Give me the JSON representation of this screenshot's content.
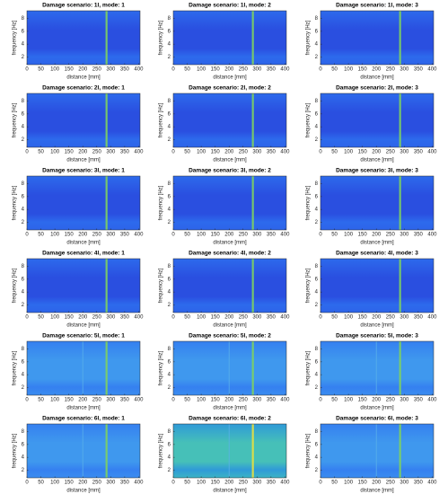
{
  "chart_data": [
    {
      "type": "heatmap",
      "title": "Damage scenario: 1l, mode: 1",
      "xlabel": "distance [mm]",
      "ylabel": "frequency [Hz]",
      "xlim": [
        0,
        405
      ],
      "ylim": [
        0.8,
        9.2
      ],
      "xticks": [
        0,
        50,
        100,
        150,
        200,
        250,
        300,
        350,
        400
      ],
      "yticks": [
        2,
        4,
        6,
        8
      ]
    },
    {
      "type": "heatmap",
      "title": "Damage scenario: 1l, mode: 2",
      "xlabel": "distance [mm]",
      "ylabel": "frequency [Hz]",
      "xlim": [
        0,
        405
      ],
      "ylim": [
        0.8,
        9.2
      ],
      "xticks": [
        0,
        50,
        100,
        150,
        200,
        250,
        300,
        350,
        400
      ],
      "yticks": [
        2,
        4,
        6,
        8
      ]
    },
    {
      "type": "heatmap",
      "title": "Damage scenario: 1l, mode: 3",
      "xlabel": "distance [mm]",
      "ylabel": "frequency [Hz]",
      "xlim": [
        0,
        405
      ],
      "ylim": [
        0.8,
        9.2
      ],
      "xticks": [
        0,
        50,
        100,
        150,
        200,
        250,
        300,
        350,
        400
      ],
      "yticks": [
        2,
        4,
        6,
        8
      ]
    },
    {
      "type": "heatmap",
      "title": "Damage scenario: 2l, mode: 1",
      "xlabel": "distance [mm]",
      "ylabel": "frequency [Hz]",
      "xlim": [
        0,
        405
      ],
      "ylim": [
        0.8,
        9.2
      ],
      "xticks": [
        0,
        50,
        100,
        150,
        200,
        250,
        300,
        350,
        400
      ],
      "yticks": [
        2,
        4,
        6,
        8
      ]
    },
    {
      "type": "heatmap",
      "title": "Damage scenario: 2l, mode: 2",
      "xlabel": "distance [mm]",
      "ylabel": "frequency [Hz]",
      "xlim": [
        0,
        405
      ],
      "ylim": [
        0.8,
        9.2
      ],
      "xticks": [
        0,
        50,
        100,
        150,
        200,
        250,
        300,
        350,
        400
      ],
      "yticks": [
        2,
        4,
        6,
        8
      ]
    },
    {
      "type": "heatmap",
      "title": "Damage scenario: 2l, mode: 3",
      "xlabel": "distance [mm]",
      "ylabel": "frequency [Hz]",
      "xlim": [
        0,
        405
      ],
      "ylim": [
        0.8,
        9.2
      ],
      "xticks": [
        0,
        50,
        100,
        150,
        200,
        250,
        300,
        350,
        400
      ],
      "yticks": [
        2,
        4,
        6,
        8
      ]
    },
    {
      "type": "heatmap",
      "title": "Damage scenario: 3l, mode: 1",
      "xlabel": "distance [mm]",
      "ylabel": "frequency [Hz]",
      "xlim": [
        0,
        405
      ],
      "ylim": [
        0.8,
        9.2
      ],
      "xticks": [
        0,
        50,
        100,
        150,
        200,
        250,
        300,
        350,
        400
      ],
      "yticks": [
        2,
        4,
        6,
        8
      ]
    },
    {
      "type": "heatmap",
      "title": "Damage scenario: 3l, mode: 2",
      "xlabel": "distance [mm]",
      "ylabel": "frequency [Hz]",
      "xlim": [
        0,
        405
      ],
      "ylim": [
        0.8,
        9.2
      ],
      "xticks": [
        0,
        50,
        100,
        150,
        200,
        250,
        300,
        350,
        400
      ],
      "yticks": [
        2,
        4,
        6,
        8
      ]
    },
    {
      "type": "heatmap",
      "title": "Damage scenario: 3l, mode: 3",
      "xlabel": "distance [mm]",
      "ylabel": "frequency [Hz]",
      "xlim": [
        0,
        405
      ],
      "ylim": [
        0.8,
        9.2
      ],
      "xticks": [
        0,
        50,
        100,
        150,
        200,
        250,
        300,
        350,
        400
      ],
      "yticks": [
        2,
        4,
        6,
        8
      ]
    },
    {
      "type": "heatmap",
      "title": "Damage scenario: 4l, mode: 1",
      "xlabel": "distance [mm]",
      "ylabel": "frequency [Hz]",
      "xlim": [
        0,
        405
      ],
      "ylim": [
        0.8,
        9.2
      ],
      "xticks": [
        0,
        50,
        100,
        150,
        200,
        250,
        300,
        350,
        400
      ],
      "yticks": [
        2,
        4,
        6,
        8
      ]
    },
    {
      "type": "heatmap",
      "title": "Damage scenario: 4l, mode: 2",
      "xlabel": "distance [mm]",
      "ylabel": "frequency [Hz]",
      "xlim": [
        0,
        405
      ],
      "ylim": [
        0.8,
        9.2
      ],
      "xticks": [
        0,
        50,
        100,
        150,
        200,
        250,
        300,
        350,
        400
      ],
      "yticks": [
        2,
        4,
        6,
        8
      ]
    },
    {
      "type": "heatmap",
      "title": "Damage scenario: 4l, mode: 3",
      "xlabel": "distance [mm]",
      "ylabel": "frequency [Hz]",
      "xlim": [
        0,
        405
      ],
      "ylim": [
        0.8,
        9.2
      ],
      "xticks": [
        0,
        50,
        100,
        150,
        200,
        250,
        300,
        350,
        400
      ],
      "yticks": [
        2,
        4,
        6,
        8
      ]
    },
    {
      "type": "heatmap",
      "title": "Damage scenario: 5l, mode: 1",
      "xlabel": "distance [mm]",
      "ylabel": "frequency [Hz]",
      "xlim": [
        0,
        405
      ],
      "ylim": [
        0.8,
        9.2
      ],
      "xticks": [
        0,
        50,
        100,
        150,
        200,
        250,
        300,
        350,
        400
      ],
      "yticks": [
        2,
        4,
        6,
        8
      ]
    },
    {
      "type": "heatmap",
      "title": "Damage scenario: 5l, mode: 2",
      "xlabel": "distance [mm]",
      "ylabel": "frequency [Hz]",
      "xlim": [
        0,
        405
      ],
      "ylim": [
        0.8,
        9.2
      ],
      "xticks": [
        0,
        50,
        100,
        150,
        200,
        250,
        300,
        350,
        400
      ],
      "yticks": [
        2,
        4,
        6,
        8
      ]
    },
    {
      "type": "heatmap",
      "title": "Damage scenario: 5l, mode: 3",
      "xlabel": "distance [mm]",
      "ylabel": "frequency [Hz]",
      "xlim": [
        0,
        405
      ],
      "ylim": [
        0.8,
        9.2
      ],
      "xticks": [
        0,
        50,
        100,
        150,
        200,
        250,
        300,
        350,
        400
      ],
      "yticks": [
        2,
        4,
        6,
        8
      ]
    },
    {
      "type": "heatmap",
      "title": "Damage scenario: 6l, mode: 1",
      "xlabel": "distance [mm]",
      "ylabel": "frequency [Hz]",
      "xlim": [
        0,
        405
      ],
      "ylim": [
        0.8,
        9.2
      ],
      "xticks": [
        0,
        50,
        100,
        150,
        200,
        250,
        300,
        350,
        400
      ],
      "yticks": [
        2,
        4,
        6,
        8
      ]
    },
    {
      "type": "heatmap",
      "title": "Damage scenario: 6l, mode: 2",
      "xlabel": "distance [mm]",
      "ylabel": "frequency [Hz]",
      "xlim": [
        0,
        405
      ],
      "ylim": [
        0.8,
        9.2
      ],
      "xticks": [
        0,
        50,
        100,
        150,
        200,
        250,
        300,
        350,
        400
      ],
      "yticks": [
        2,
        4,
        6,
        8
      ]
    },
    {
      "type": "heatmap",
      "title": "Damage scenario: 6l, mode: 3",
      "xlabel": "distance [mm]",
      "ylabel": "frequency [Hz]",
      "xlim": [
        0,
        405
      ],
      "ylim": [
        0.8,
        9.2
      ],
      "xticks": [
        0,
        50,
        100,
        150,
        200,
        250,
        300,
        350,
        400
      ],
      "yticks": [
        2,
        4,
        6,
        8
      ]
    }
  ]
}
